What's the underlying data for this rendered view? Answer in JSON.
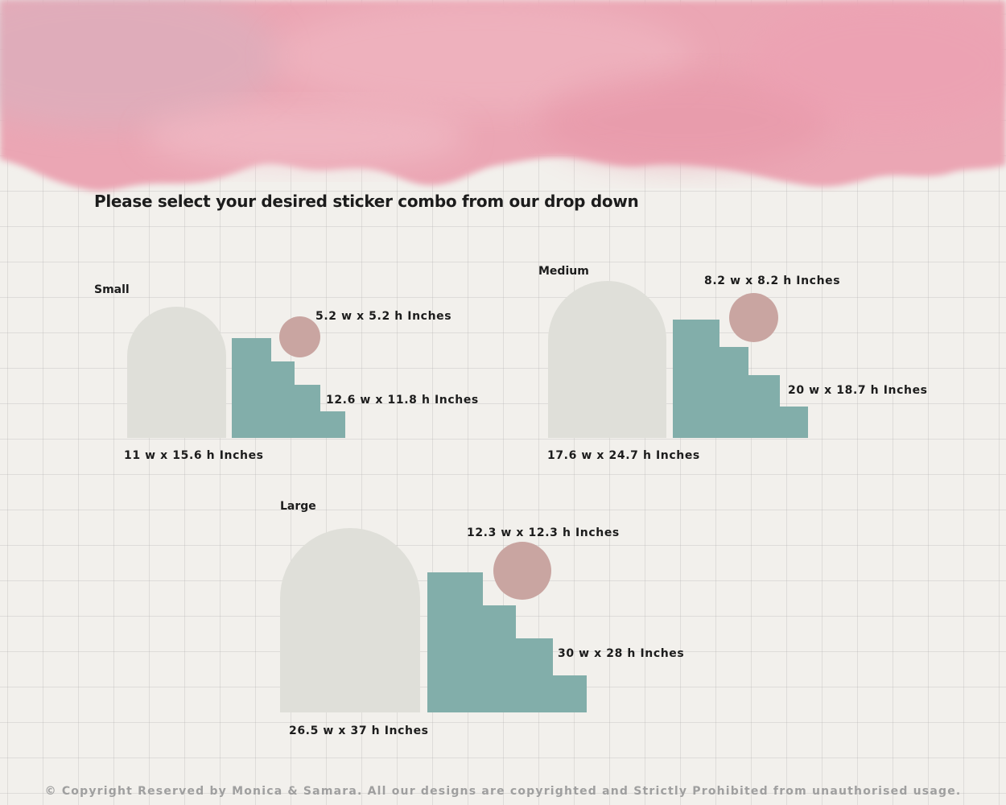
{
  "heading": "Please select your desired sticker combo from our drop down",
  "colors": {
    "arch": "#dfdfd9",
    "stairs": "#82aeaa",
    "circle": "#c9a5a1",
    "header_wash": "#eba6b4"
  },
  "sets": {
    "small": {
      "label": "Small",
      "arch_size": "11 w x 15.6 h Inches",
      "stairs_size": "12.6 w x 11.8 h Inches",
      "circle_size": "5.2 w x 5.2 h Inches"
    },
    "medium": {
      "label": "Medium",
      "arch_size": "17.6 w x 24.7 h Inches",
      "stairs_size": "20 w x 18.7 h Inches",
      "circle_size": "8.2 w x 8.2 h Inches"
    },
    "large": {
      "label": "Large",
      "arch_size": "26.5 w x 37 h Inches",
      "stairs_size": "30 w x 28 h Inches",
      "circle_size": "12.3 w x 12.3 h Inches"
    }
  },
  "copyright": "© Copyright Reserved by Monica & Samara. All our designs are copyrighted and Strictly Prohibited from unauthorised usage."
}
